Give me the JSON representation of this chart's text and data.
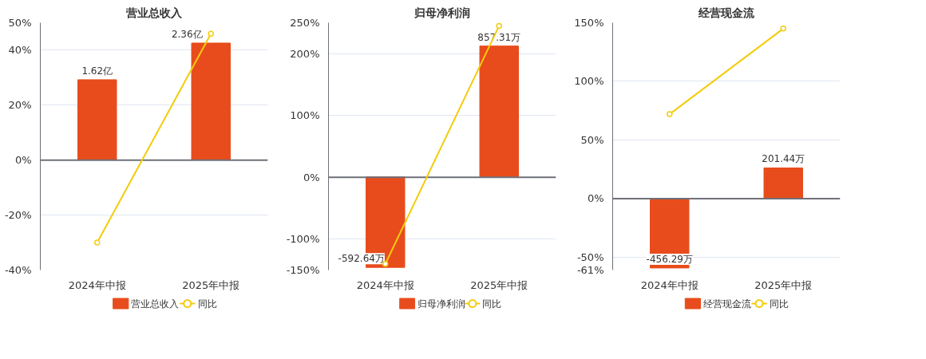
{
  "chart_data": [
    {
      "type": "bar",
      "title": "营业总收入",
      "categories": [
        "2024年中报",
        "2025年中报"
      ],
      "series": [
        {
          "name": "营业总收入",
          "axis": "y2",
          "color": "#e84c1c",
          "values": [
            1.62,
            2.36
          ],
          "value_labels": [
            "1.62亿",
            "2.36亿"
          ]
        },
        {
          "name": "同比",
          "type": "line",
          "color": "#f2cc0c",
          "marker": "circle",
          "values": [
            -30,
            46
          ]
        }
      ],
      "ylim": [
        -40,
        50
      ],
      "yticks": [
        {
          "value": -40,
          "label": "-40%"
        },
        {
          "value": -20,
          "label": "-20%"
        },
        {
          "value": 0,
          "label": "0%"
        },
        {
          "value": 20,
          "label": "20%"
        },
        {
          "value": 40,
          "label": "40%"
        },
        {
          "value": 50,
          "label": "50%"
        }
      ],
      "y2lim": [
        -2.22,
        2.77
      ],
      "grid": "y",
      "legend": "bottom"
    },
    {
      "type": "bar",
      "title": "归母净利润",
      "categories": [
        "2024年中报",
        "2025年中报"
      ],
      "series": [
        {
          "name": "归母净利润",
          "axis": "y2",
          "color": "#e84c1c",
          "values": [
            -592.64,
            857.31
          ],
          "value_labels": [
            "-592.64万",
            "857.31万"
          ]
        },
        {
          "name": "同比",
          "type": "line",
          "color": "#f2cc0c",
          "marker": "circle",
          "values": [
            -140,
            245
          ]
        }
      ],
      "ylim": [
        -150,
        250
      ],
      "yticks": [
        {
          "value": -150,
          "label": "-150%"
        },
        {
          "value": -100,
          "label": "-100%"
        },
        {
          "value": 0,
          "label": "0%"
        },
        {
          "value": 100,
          "label": "100%"
        },
        {
          "value": 200,
          "label": "200%"
        },
        {
          "value": 250,
          "label": "250%"
        }
      ],
      "y2lim": [
        -610,
        1010
      ],
      "grid": "y",
      "legend": "bottom"
    },
    {
      "type": "bar",
      "title": "经营现金流",
      "categories": [
        "2024年中报",
        "2025年中报"
      ],
      "series": [
        {
          "name": "经营现金流",
          "axis": "y2",
          "color": "#e84c1c",
          "values": [
            -456.29,
            201.44
          ],
          "value_labels": [
            "-456.29万",
            "201.44万"
          ]
        },
        {
          "name": "同比",
          "type": "line",
          "color": "#f2cc0c",
          "marker": "circle",
          "values": [
            72,
            145
          ]
        }
      ],
      "ylim": [
        -61,
        150
      ],
      "yticks": [
        {
          "value": -61,
          "label": "-61%"
        },
        {
          "value": -50,
          "label": "-50%"
        },
        {
          "value": 0,
          "label": "0%"
        },
        {
          "value": 50,
          "label": "50%"
        },
        {
          "value": 100,
          "label": "100%"
        },
        {
          "value": 150,
          "label": "150%"
        }
      ],
      "y2lim": [
        -470,
        1156
      ],
      "grid": "y",
      "legend": "bottom"
    }
  ]
}
